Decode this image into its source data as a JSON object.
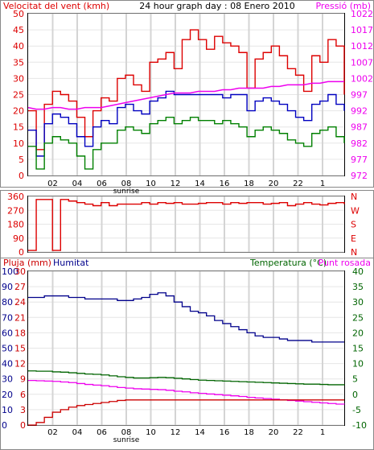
{
  "chart_data": [
    {
      "type": "line",
      "header": {
        "left": "Velocitat del vent (kmh)",
        "center": "24 hour graph day : 08 Enero 2010",
        "right": "Pressió (mb)"
      },
      "x_ticks": [
        "02",
        "04",
        "06",
        "08",
        "10",
        "12",
        "14",
        "16",
        "18",
        "20",
        "22",
        "1"
      ],
      "sunrise_label": "sunrise",
      "left_axis": {
        "label": "Velocitat del vent (kmh)",
        "ticks": [
          "50",
          "45",
          "40",
          "35",
          "30",
          "25",
          "20",
          "15",
          "10",
          "5",
          "0"
        ],
        "ylim": [
          0,
          50
        ]
      },
      "right_axis": {
        "label": "Pressió (mb)",
        "ticks": [
          "1022",
          "1017",
          "1012",
          "1007",
          "1002",
          "997",
          "992",
          "987",
          "982",
          "977",
          "972"
        ],
        "ylim": [
          972,
          1022
        ]
      },
      "colors": {
        "gust": "#dd0000",
        "average": "#0000c0",
        "low": "#008000",
        "pressure": "#ee00ee"
      },
      "series": [
        {
          "key": "gust",
          "values": [
            20,
            8,
            22,
            26,
            25,
            23,
            18,
            12,
            20,
            24,
            23,
            30,
            31,
            28,
            26,
            35,
            36,
            38,
            33,
            42,
            45,
            42,
            39,
            43,
            41,
            40,
            38,
            27,
            36,
            38,
            40,
            37,
            33,
            31,
            26,
            37,
            35,
            42,
            40,
            25
          ]
        },
        {
          "key": "average",
          "values": [
            14,
            6,
            16,
            19,
            18,
            16,
            12,
            9,
            15,
            17,
            16,
            21,
            22,
            20,
            19,
            23,
            24,
            26,
            25,
            25,
            25,
            25,
            25,
            25,
            24,
            25,
            25,
            20,
            23,
            24,
            23,
            22,
            20,
            18,
            17,
            22,
            23,
            25,
            22,
            20
          ]
        },
        {
          "key": "low",
          "values": [
            9,
            2,
            10,
            12,
            11,
            10,
            6,
            2,
            8,
            10,
            10,
            14,
            15,
            14,
            13,
            16,
            17,
            18,
            16,
            17,
            18,
            17,
            17,
            16,
            17,
            16,
            15,
            12,
            14,
            15,
            14,
            13,
            11,
            10,
            9,
            13,
            14,
            15,
            12,
            10
          ]
        },
        {
          "key": "pressure",
          "values": [
            993,
            992.5,
            992.5,
            993,
            993,
            992.5,
            992.5,
            993,
            993,
            993,
            993.5,
            994,
            994.5,
            995,
            995.5,
            996,
            996.5,
            997,
            997.5,
            997.5,
            997.5,
            998,
            998,
            998,
            998.5,
            998.5,
            999,
            999,
            999,
            999,
            999.5,
            999.5,
            1000,
            1000,
            1000,
            1000.5,
            1000.5,
            1001,
            1001,
            1001
          ]
        }
      ]
    },
    {
      "type": "line",
      "left_axis": {
        "ticks": [
          "360",
          "270",
          "180",
          "90",
          "0"
        ],
        "ylim": [
          0,
          360
        ]
      },
      "direction_labels": [
        "N",
        "W",
        "S",
        "E",
        "N"
      ],
      "color": "#dd0000",
      "series": [
        {
          "key": "wind_direction",
          "values": [
            10,
            340,
            340,
            10,
            340,
            330,
            320,
            310,
            300,
            320,
            300,
            310,
            310,
            310,
            320,
            310,
            320,
            315,
            320,
            310,
            310,
            315,
            320,
            320,
            310,
            320,
            315,
            320,
            320,
            310,
            315,
            320,
            300,
            310,
            320,
            310,
            305,
            315,
            320,
            310
          ]
        }
      ]
    },
    {
      "type": "line",
      "header": {
        "left_a": "Pluja (mm)",
        "left_b": "Humitat",
        "right_a": "Temperatura (°C)",
        "right_b": "Punt rosada"
      },
      "x_ticks": [
        "02",
        "04",
        "06",
        "08",
        "10",
        "12",
        "14",
        "16",
        "18",
        "20",
        "22",
        "1"
      ],
      "sunrise_label": "sunrise",
      "humidity_axis": {
        "ticks": [
          "100",
          "90",
          "80",
          "70",
          "60",
          "50",
          "40",
          "30",
          "20",
          "10",
          "0"
        ],
        "ylim": [
          0,
          100
        ]
      },
      "rain_axis": {
        "ticks": [
          "30",
          "27",
          "24",
          "21",
          "18",
          "15",
          "12",
          "9",
          "6",
          "3",
          "0"
        ],
        "ylim": [
          0,
          30
        ]
      },
      "temp_axis": {
        "ticks": [
          "40",
          "35",
          "30",
          "25",
          "20",
          "15",
          "10",
          "5",
          "0",
          "-5",
          "-10"
        ],
        "ylim": [
          -10,
          40
        ]
      },
      "colors": {
        "rain": "#cc0000",
        "humidity": "#00008b",
        "temperature": "#006400",
        "dewpoint": "#ee00ee"
      },
      "series": [
        {
          "key": "humidity",
          "values": [
            83,
            83,
            84,
            84,
            84,
            83,
            83,
            82,
            82,
            82,
            82,
            81,
            81,
            82,
            83,
            85,
            86,
            84,
            80,
            77,
            74,
            73,
            71,
            68,
            66,
            64,
            62,
            60,
            58,
            57,
            57,
            56,
            55,
            55,
            55,
            54,
            54,
            54,
            54,
            54
          ]
        },
        {
          "key": "temperature",
          "values": [
            7.6,
            7.5,
            7.5,
            7.3,
            7.2,
            7.0,
            6.8,
            6.6,
            6.5,
            6.3,
            6.0,
            5.7,
            5.5,
            5.3,
            5.3,
            5.4,
            5.5,
            5.4,
            5.2,
            5.0,
            4.8,
            4.6,
            4.5,
            4.4,
            4.3,
            4.2,
            4.1,
            4.0,
            3.9,
            3.8,
            3.7,
            3.6,
            3.5,
            3.4,
            3.3,
            3.3,
            3.2,
            3.1,
            3.1,
            3.0
          ]
        },
        {
          "key": "dewpoint",
          "values": [
            4.5,
            4.4,
            4.3,
            4.2,
            4.0,
            3.8,
            3.5,
            3.2,
            3.0,
            2.8,
            2.5,
            2.2,
            2.0,
            1.8,
            1.7,
            1.6,
            1.5,
            1.3,
            1.0,
            0.8,
            0.5,
            0.3,
            0.1,
            -0.1,
            -0.3,
            -0.5,
            -0.7,
            -1.0,
            -1.2,
            -1.4,
            -1.6,
            -1.8,
            -2.0,
            -2.2,
            -2.4,
            -2.6,
            -2.8,
            -3.0,
            -3.2,
            -3.3
          ]
        },
        {
          "key": "rain",
          "values": [
            0,
            0.5,
            1.5,
            2.5,
            3,
            3.5,
            3.8,
            4,
            4.2,
            4.4,
            4.6,
            4.8,
            4.9,
            4.9,
            4.9,
            4.9,
            4.9,
            4.9,
            4.9,
            4.9,
            4.9,
            4.9,
            4.9,
            4.9,
            4.9,
            4.9,
            4.9,
            4.9,
            4.9,
            4.9,
            4.9,
            4.9,
            4.9,
            4.9,
            4.9,
            4.9,
            4.9,
            4.9,
            4.9,
            4.9
          ]
        }
      ]
    }
  ]
}
